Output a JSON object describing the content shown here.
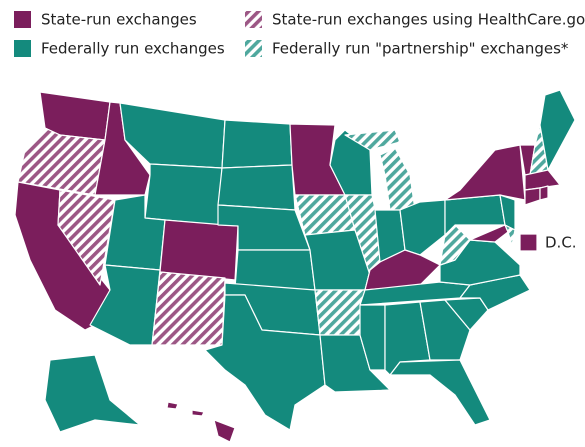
{
  "legend": [
    {
      "label": "State-run exchanges",
      "color": "#7b1e5c",
      "hatched": false
    },
    {
      "label": "Federally run exchanges",
      "color": "#148a7d",
      "hatched": false
    },
    {
      "label": "State-run exchanges using HealthCare.gov",
      "color": "#7b1e5c",
      "hatched": true
    },
    {
      "label": "Federally run \"partnership\" exchanges*",
      "color": "#148a7d",
      "hatched": true
    }
  ],
  "dc_label": "D.C."
}
